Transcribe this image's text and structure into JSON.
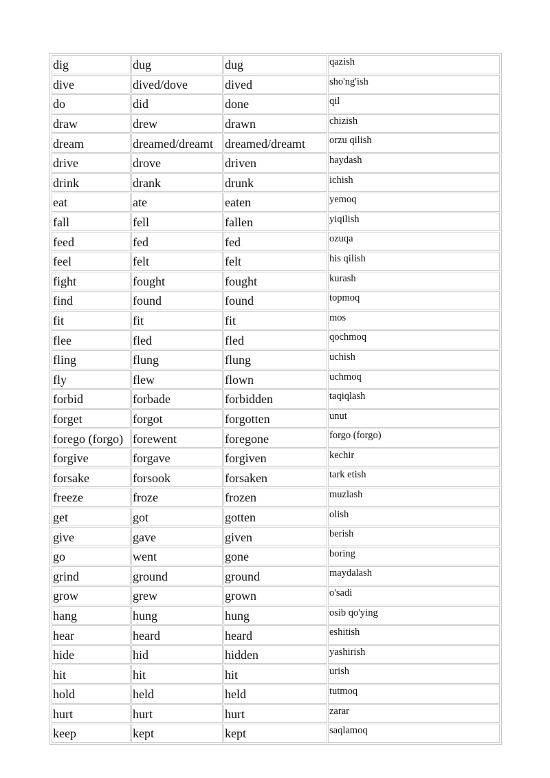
{
  "table": {
    "rows": [
      [
        "dig",
        "dug",
        "dug",
        "qazish"
      ],
      [
        "dive",
        "dived/dove",
        "dived",
        "sho'ng'ish"
      ],
      [
        "do",
        "did",
        "done",
        "qil"
      ],
      [
        "draw",
        "drew",
        "drawn",
        "chizish"
      ],
      [
        "dream",
        "dreamed/dreamt",
        "dreamed/dreamt",
        "orzu qilish"
      ],
      [
        "drive",
        "drove",
        "driven",
        "haydash"
      ],
      [
        "drink",
        "drank",
        "drunk",
        "ichish"
      ],
      [
        "eat",
        "ate",
        "eaten",
        "yemoq"
      ],
      [
        "fall",
        "fell",
        "fallen",
        "yiqilish"
      ],
      [
        "feed",
        "fed",
        "fed",
        "ozuqa"
      ],
      [
        "feel",
        "felt",
        "felt",
        "his qilish"
      ],
      [
        "fight",
        "fought",
        "fought",
        "kurash"
      ],
      [
        "find",
        "found",
        "found",
        "topmoq"
      ],
      [
        "fit",
        "fit",
        "fit",
        "mos"
      ],
      [
        "flee",
        "fled",
        "fled",
        "qochmoq"
      ],
      [
        "fling",
        "flung",
        "flung",
        "uchish"
      ],
      [
        "fly",
        "flew",
        "flown",
        "uchmoq"
      ],
      [
        "forbid",
        "forbade",
        "forbidden",
        "taqiqlash"
      ],
      [
        "forget",
        "forgot",
        "forgotten",
        "unut"
      ],
      [
        "forego (forgo)",
        "forewent",
        "foregone",
        "forgo (forgo)"
      ],
      [
        "forgive",
        "forgave",
        "forgiven",
        "kechir"
      ],
      [
        "forsake",
        "forsook",
        "forsaken",
        "tark etish"
      ],
      [
        "freeze",
        "froze",
        "frozen",
        "muzlash"
      ],
      [
        "get",
        "got",
        "gotten",
        "olish"
      ],
      [
        "give",
        "gave",
        "given",
        "berish"
      ],
      [
        "go",
        "went",
        "gone",
        "boring"
      ],
      [
        "grind",
        "ground",
        "ground",
        "maydalash"
      ],
      [
        "grow",
        "grew",
        "grown",
        "o'sadi"
      ],
      [
        "hang",
        "hung",
        "hung",
        "osib qo'ying"
      ],
      [
        "hear",
        "heard",
        "heard",
        "eshitish"
      ],
      [
        "hide",
        "hid",
        "hidden",
        "yashirish"
      ],
      [
        "hit",
        "hit",
        "hit",
        "urish"
      ],
      [
        "hold",
        "held",
        "held",
        "tutmoq"
      ],
      [
        "hurt",
        "hurt",
        "hurt",
        "zarar"
      ],
      [
        "keep",
        "kept",
        "kept",
        "saqlamoq"
      ]
    ]
  }
}
